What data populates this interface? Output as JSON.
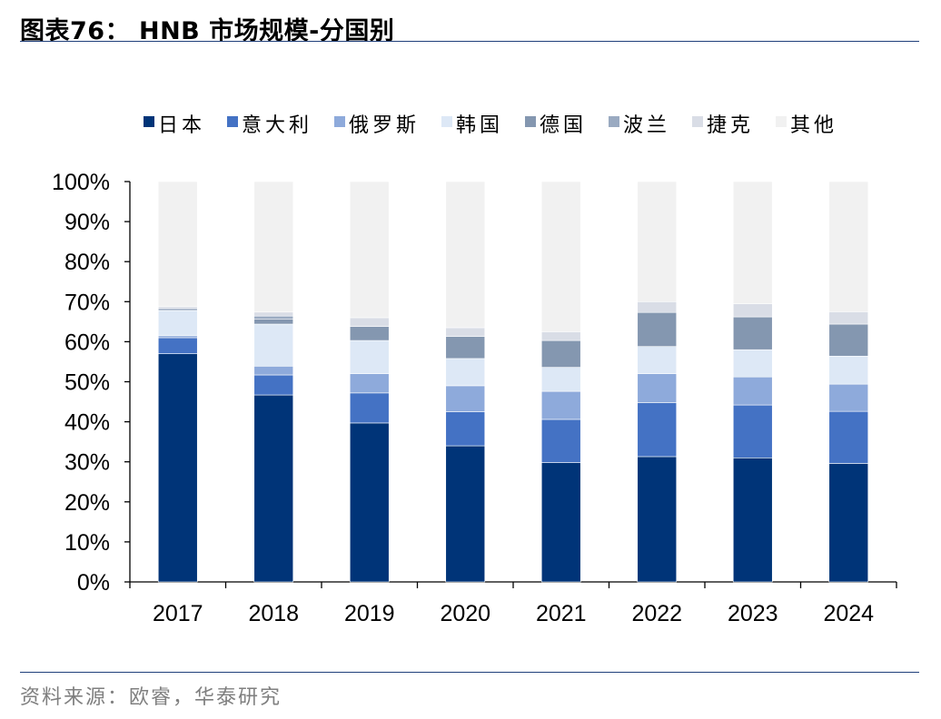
{
  "title": "图表76：  HNB 市场规模-分国别",
  "source": "资料来源：欧睿，华泰研究",
  "chart_data": {
    "type": "bar",
    "stacked": true,
    "title": "HNB 市场规模-分国别",
    "categories": [
      "2017",
      "2018",
      "2019",
      "2020",
      "2021",
      "2022",
      "2023",
      "2024"
    ],
    "ylim": [
      0,
      100
    ],
    "y_ticks": [
      "0%",
      "10%",
      "20%",
      "30%",
      "40%",
      "50%",
      "60%",
      "70%",
      "80%",
      "90%",
      "100%"
    ],
    "y_tick_values": [
      0,
      10,
      20,
      30,
      40,
      50,
      60,
      70,
      80,
      90,
      100
    ],
    "xlabel": "",
    "ylabel": "",
    "legend_position": "top",
    "series": [
      {
        "name": "日本",
        "color": "#003478",
        "values": [
          57,
          46.7,
          39.7,
          34,
          29.8,
          31.3,
          31,
          29.6
        ]
      },
      {
        "name": "意大利",
        "color": "#4472c4",
        "values": [
          4,
          5,
          7.5,
          8.5,
          10.8,
          13.5,
          13.2,
          13
        ]
      },
      {
        "name": "俄罗斯",
        "color": "#8eaadb",
        "values": [
          0.5,
          2.2,
          4.8,
          6.5,
          7,
          7.2,
          7,
          6.8
        ]
      },
      {
        "name": "韩国",
        "color": "#dde8f6",
        "values": [
          6.3,
          10.5,
          8.3,
          6.8,
          6,
          6.8,
          6.8,
          7
        ]
      },
      {
        "name": "德国",
        "color": "#8497b0",
        "values": [
          0,
          1.2,
          3.5,
          5.5,
          6.7,
          8.5,
          8.2,
          8
        ]
      },
      {
        "name": "波兰",
        "color": "#9aaac1",
        "values": [
          0.5,
          0.8,
          0,
          0,
          0,
          0,
          0,
          0
        ]
      },
      {
        "name": "捷克",
        "color": "#d9dde6",
        "values": [
          0.5,
          1,
          2.2,
          2.2,
          2.2,
          2.7,
          3.3,
          3.1
        ]
      },
      {
        "name": "其他",
        "color": "#f1f1f1",
        "values": [
          31.2,
          32.6,
          34,
          36.5,
          37.5,
          30,
          30.5,
          32.5
        ]
      }
    ]
  }
}
